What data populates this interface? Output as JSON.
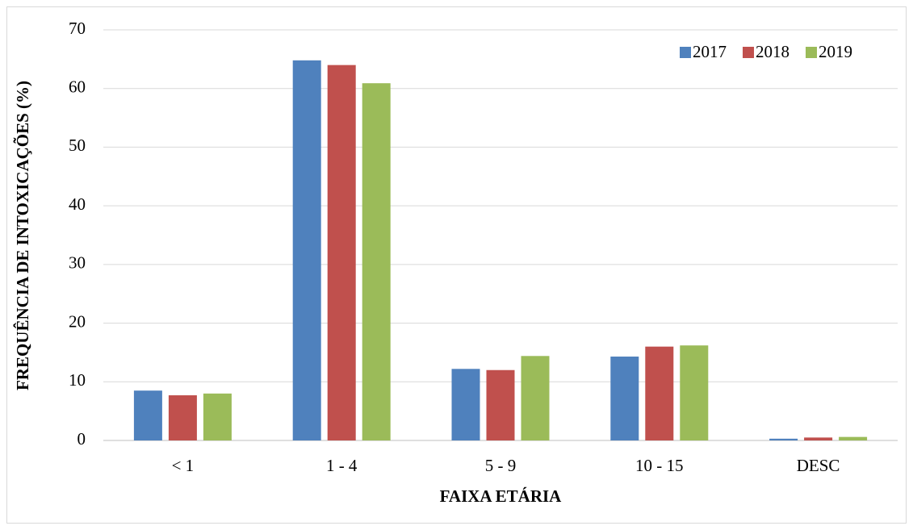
{
  "chart_data": {
    "type": "bar",
    "xlabel": "FAIXA ETÁRIA",
    "ylabel": "FREQUÊNCIA DE INTOXICAÇÕES (%)",
    "categories": [
      "< 1",
      "1 - 4",
      "5 - 9",
      "10 - 15",
      "DESC"
    ],
    "series": [
      {
        "name": "2017",
        "color": "#4f81bd",
        "values": [
          8.5,
          64.8,
          12.2,
          14.3,
          0.3
        ]
      },
      {
        "name": "2018",
        "color": "#c0504d",
        "values": [
          7.7,
          64.0,
          12.0,
          16.0,
          0.5
        ]
      },
      {
        "name": "2019",
        "color": "#9bbb59",
        "values": [
          8.0,
          60.9,
          14.4,
          16.2,
          0.6
        ]
      }
    ],
    "ylim": [
      0,
      70
    ],
    "yticks": [
      0,
      10,
      20,
      30,
      40,
      50,
      60,
      70
    ],
    "grid": true,
    "legend": "top-right"
  }
}
